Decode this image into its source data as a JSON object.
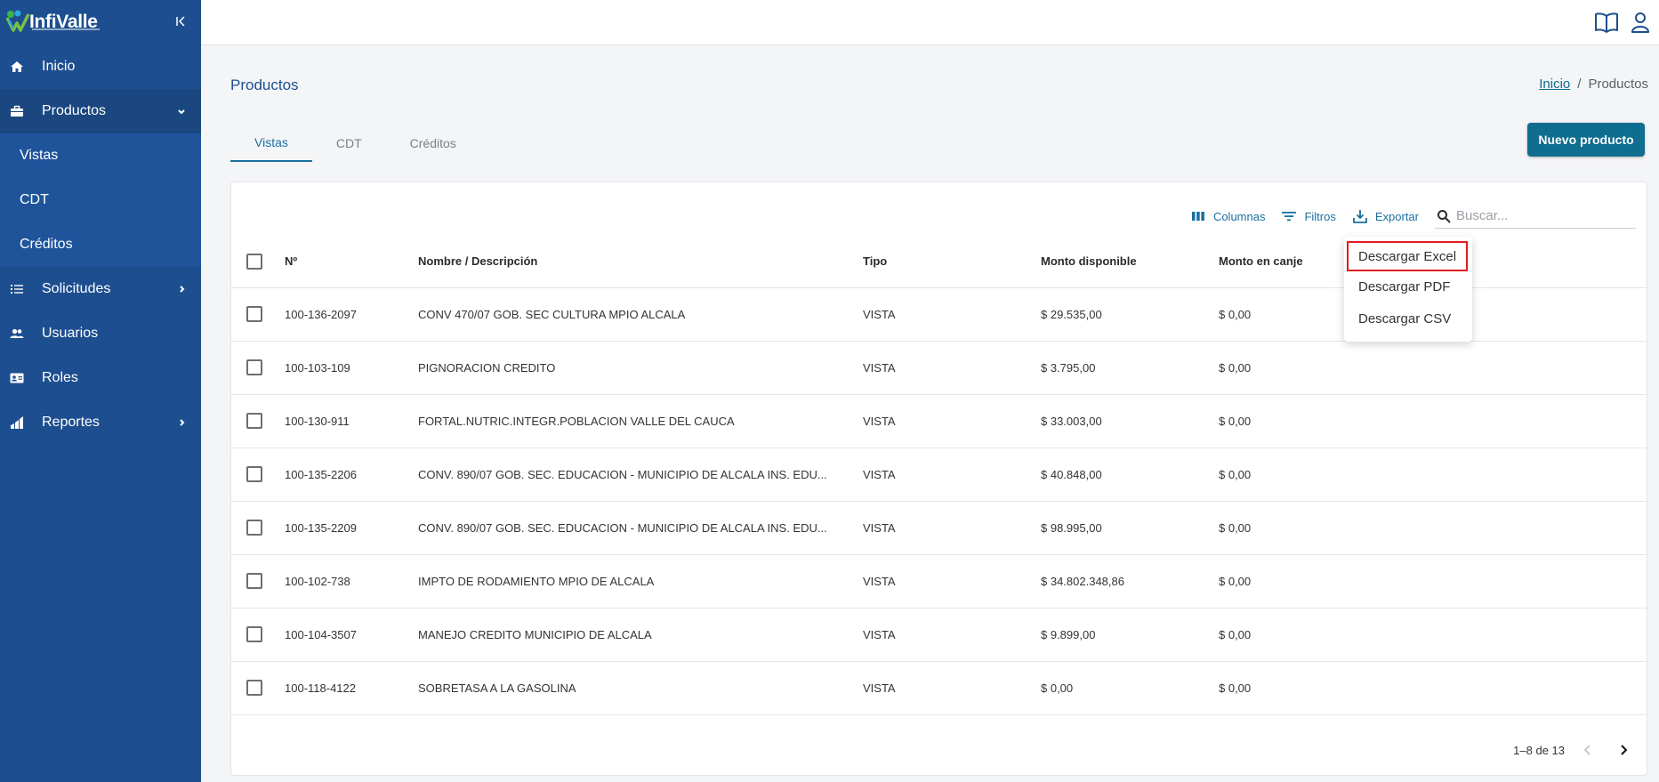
{
  "app": {
    "logo_text": "InfiValle"
  },
  "colors": {
    "sidebar": "#1d4e8f",
    "accent": "#0f6d8f",
    "highlight": "#e01c1c"
  },
  "sidebar": {
    "items": [
      {
        "label": "Inicio",
        "icon": "home-icon"
      },
      {
        "label": "Productos",
        "icon": "briefcase-icon",
        "expanded": true
      },
      {
        "label": "Solicitudes",
        "icon": "list-icon"
      },
      {
        "label": "Usuarios",
        "icon": "users-icon"
      },
      {
        "label": "Roles",
        "icon": "id-card-icon"
      },
      {
        "label": "Reportes",
        "icon": "bar-chart-icon"
      }
    ],
    "sub_items": [
      "Vistas",
      "CDT",
      "Créditos"
    ]
  },
  "header": {
    "title": "Productos"
  },
  "breadcrumb": {
    "home": "Inicio",
    "sep": "/",
    "current": "Productos"
  },
  "tabs": [
    {
      "label": "Vistas",
      "active": true
    },
    {
      "label": "CDT",
      "active": false
    },
    {
      "label": "Créditos",
      "active": false
    }
  ],
  "actions": {
    "new_product": "Nuevo producto"
  },
  "toolbar": {
    "columns": "Columnas",
    "filters": "Filtros",
    "export": "Exportar",
    "search_placeholder": "Buscar..."
  },
  "table": {
    "headers": [
      "Nº",
      "Nombre / Descripción",
      "Tipo",
      "Monto disponible",
      "Monto en canje"
    ],
    "rows": [
      [
        "100-136-2097",
        "CONV 470/07 GOB. SEC CULTURA MPIO ALCALA",
        "VISTA",
        "$ 29.535,00",
        "$ 0,00"
      ],
      [
        "100-103-109",
        "PIGNORACION CREDITO",
        "VISTA",
        "$ 3.795,00",
        "$ 0,00"
      ],
      [
        "100-130-911",
        "FORTAL.NUTRIC.INTEGR.POBLACION VALLE DEL CAUCA",
        "VISTA",
        "$ 33.003,00",
        "$ 0,00"
      ],
      [
        "100-135-2206",
        "CONV. 890/07 GOB. SEC. EDUCACION - MUNICIPIO DE ALCALA INS. EDU...",
        "VISTA",
        "$ 40.848,00",
        "$ 0,00"
      ],
      [
        "100-135-2209",
        "CONV. 890/07 GOB. SEC. EDUCACION - MUNICIPIO DE ALCALA INS. EDU...",
        "VISTA",
        "$ 98.995,00",
        "$ 0,00"
      ],
      [
        "100-102-738",
        "IMPTO DE RODAMIENTO MPIO DE ALCALA",
        "VISTA",
        "$ 34.802.348,86",
        "$ 0,00"
      ],
      [
        "100-104-3507",
        "MANEJO CREDITO MUNICIPIO DE ALCALA",
        "VISTA",
        "$ 9.899,00",
        "$ 0,00"
      ],
      [
        "100-118-4122",
        "SOBRETASA A LA GASOLINA",
        "VISTA",
        "$ 0,00",
        "$ 0,00"
      ]
    ]
  },
  "pagination": {
    "range": "1–8 de 13"
  },
  "export_menu": {
    "items": [
      "Descargar Excel",
      "Descargar PDF",
      "Descargar CSV"
    ],
    "highlighted": "Descargar Excel"
  }
}
